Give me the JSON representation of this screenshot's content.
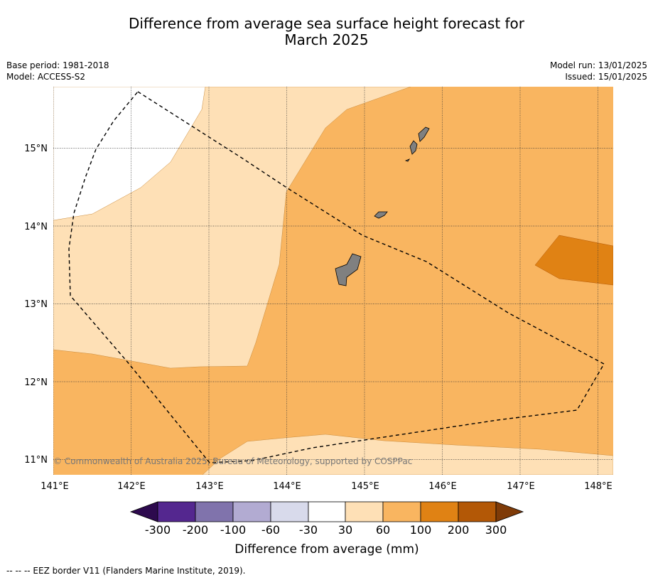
{
  "title": {
    "line1": "Difference from average sea surface height forecast for",
    "line2": "March 2025"
  },
  "meta": {
    "base_period": "Base period: 1981-2018",
    "model": "Model: ACCESS-S2",
    "model_run": "Model run: 13/01/2025",
    "issued": "Issued: 15/01/2025"
  },
  "map": {
    "lon_ticks": [
      "141°E",
      "142°E",
      "143°E",
      "144°E",
      "145°E",
      "146°E",
      "147°E",
      "148°E"
    ],
    "lat_ticks": [
      "15°N",
      "14°N",
      "13°N",
      "12°N",
      "11°N"
    ],
    "copyright": "© Commonwealth of Australia 2025, Bureau of Meteorology, supported by COSPPac",
    "land_color": "#808080"
  },
  "colorbar": {
    "labels": [
      "-300",
      "-200",
      "-100",
      "-60",
      "-30",
      "30",
      "60",
      "100",
      "200",
      "300"
    ],
    "colors": [
      "#2d0a4e",
      "#54278f",
      "#8073ac",
      "#b2abd2",
      "#d8daeb",
      "#ffffff",
      "#fee0b6",
      "#f9b560",
      "#e08214",
      "#b35806",
      "#7f3b08"
    ],
    "title": "Difference from average (mm)"
  },
  "footer": {
    "legend": "--  --  -- EEZ border V11 (Flanders Marine Institute, 2019)."
  }
}
